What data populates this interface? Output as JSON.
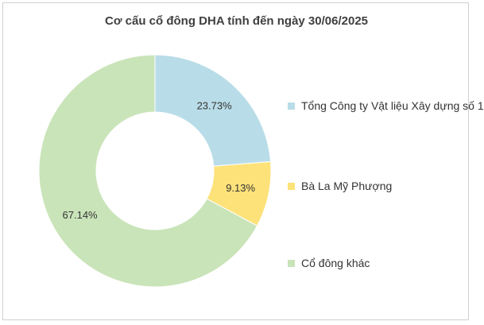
{
  "chart_data": {
    "type": "pie",
    "variant": "donut",
    "title": "Cơ cấu cổ đông DHA tính đến ngày 30/06/2025",
    "categories": [
      "Tổng Công ty Vật liệu Xây dựng số 1",
      "Bà La Mỹ Phượng",
      "Cổ đông khác"
    ],
    "values": [
      23.73,
      9.13,
      67.14
    ],
    "value_labels": [
      "23.73%",
      "9.13%",
      "67.14%"
    ],
    "colors": [
      "#b9dde8",
      "#fde27a",
      "#c9e4b9"
    ],
    "legend_position": "right"
  }
}
